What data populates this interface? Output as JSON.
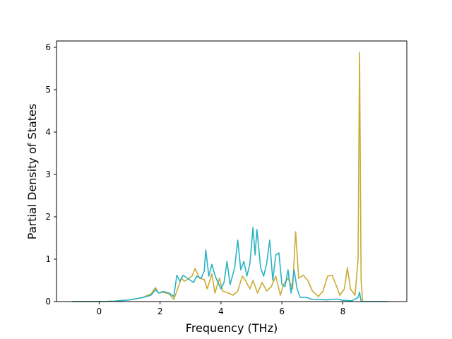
{
  "chart_data": {
    "type": "line",
    "title": "",
    "xlabel": "Frequency (THz)",
    "ylabel": "Partial Density of States",
    "xlim": [
      -1.4,
      10.1
    ],
    "ylim": [
      0,
      6.15
    ],
    "xticks": [
      0,
      2,
      4,
      6,
      8
    ],
    "yticks": [
      0,
      1,
      2,
      3,
      4,
      5,
      6
    ],
    "grid": false,
    "legend": "none",
    "series": [
      {
        "color": "#c9ab34",
        "points": [
          [
            -0.9,
            0
          ],
          [
            0,
            0
          ],
          [
            0.5,
            0.01
          ],
          [
            1.0,
            0.04
          ],
          [
            1.4,
            0.09
          ],
          [
            1.7,
            0.18
          ],
          [
            1.85,
            0.33
          ],
          [
            1.95,
            0.2
          ],
          [
            2.1,
            0.22
          ],
          [
            2.3,
            0.18
          ],
          [
            2.45,
            0.05
          ],
          [
            2.6,
            0.35
          ],
          [
            2.7,
            0.55
          ],
          [
            2.8,
            0.48
          ],
          [
            2.9,
            0.52
          ],
          [
            3.05,
            0.6
          ],
          [
            3.15,
            0.78
          ],
          [
            3.3,
            0.55
          ],
          [
            3.45,
            0.52
          ],
          [
            3.55,
            0.3
          ],
          [
            3.7,
            0.65
          ],
          [
            3.8,
            0.2
          ],
          [
            3.95,
            0.55
          ],
          [
            4.05,
            0.25
          ],
          [
            4.25,
            0.2
          ],
          [
            4.4,
            0.15
          ],
          [
            4.55,
            0.25
          ],
          [
            4.7,
            0.6
          ],
          [
            4.8,
            0.5
          ],
          [
            4.95,
            0.3
          ],
          [
            5.05,
            0.5
          ],
          [
            5.2,
            0.2
          ],
          [
            5.35,
            0.45
          ],
          [
            5.5,
            0.25
          ],
          [
            5.65,
            0.35
          ],
          [
            5.8,
            0.6
          ],
          [
            5.95,
            0.15
          ],
          [
            6.05,
            0.4
          ],
          [
            6.2,
            0.55
          ],
          [
            6.35,
            0.3
          ],
          [
            6.45,
            1.65
          ],
          [
            6.55,
            0.55
          ],
          [
            6.7,
            0.62
          ],
          [
            6.85,
            0.5
          ],
          [
            7.0,
            0.25
          ],
          [
            7.2,
            0.12
          ],
          [
            7.35,
            0.25
          ],
          [
            7.5,
            0.6
          ],
          [
            7.65,
            0.62
          ],
          [
            7.8,
            0.35
          ],
          [
            7.9,
            0.15
          ],
          [
            8.05,
            0.3
          ],
          [
            8.15,
            0.8
          ],
          [
            8.25,
            0.3
          ],
          [
            8.4,
            0.15
          ],
          [
            8.5,
            1.0
          ],
          [
            8.55,
            5.88
          ],
          [
            8.6,
            0.5
          ],
          [
            8.65,
            0
          ]
        ]
      },
      {
        "color": "#2ab3c5",
        "points": [
          [
            -0.9,
            0
          ],
          [
            0,
            0
          ],
          [
            0.5,
            0.01
          ],
          [
            1.0,
            0.04
          ],
          [
            1.4,
            0.09
          ],
          [
            1.7,
            0.15
          ],
          [
            1.85,
            0.28
          ],
          [
            1.95,
            0.2
          ],
          [
            2.1,
            0.24
          ],
          [
            2.3,
            0.2
          ],
          [
            2.45,
            0.12
          ],
          [
            2.55,
            0.62
          ],
          [
            2.65,
            0.48
          ],
          [
            2.75,
            0.62
          ],
          [
            2.9,
            0.55
          ],
          [
            3.0,
            0.5
          ],
          [
            3.1,
            0.45
          ],
          [
            3.2,
            0.6
          ],
          [
            3.35,
            0.55
          ],
          [
            3.45,
            0.72
          ],
          [
            3.5,
            1.22
          ],
          [
            3.6,
            0.6
          ],
          [
            3.7,
            0.88
          ],
          [
            3.8,
            0.62
          ],
          [
            3.9,
            0.45
          ],
          [
            4.0,
            0.3
          ],
          [
            4.1,
            0.45
          ],
          [
            4.2,
            0.95
          ],
          [
            4.3,
            0.4
          ],
          [
            4.45,
            0.8
          ],
          [
            4.55,
            1.45
          ],
          [
            4.65,
            0.75
          ],
          [
            4.75,
            0.95
          ],
          [
            4.85,
            0.6
          ],
          [
            4.95,
            0.9
          ],
          [
            5.05,
            1.75
          ],
          [
            5.12,
            1.1
          ],
          [
            5.18,
            1.7
          ],
          [
            5.3,
            0.8
          ],
          [
            5.4,
            0.6
          ],
          [
            5.5,
            0.9
          ],
          [
            5.6,
            1.45
          ],
          [
            5.7,
            0.5
          ],
          [
            5.8,
            1.1
          ],
          [
            5.9,
            1.15
          ],
          [
            6.0,
            0.4
          ],
          [
            6.1,
            0.35
          ],
          [
            6.2,
            0.75
          ],
          [
            6.3,
            0.2
          ],
          [
            6.4,
            0.75
          ],
          [
            6.5,
            0.3
          ],
          [
            6.6,
            0.1
          ],
          [
            6.8,
            0.1
          ],
          [
            7.0,
            0.05
          ],
          [
            7.5,
            0.04
          ],
          [
            7.8,
            0.06
          ],
          [
            8.0,
            0.03
          ],
          [
            8.3,
            0.02
          ],
          [
            8.5,
            0.1
          ],
          [
            8.55,
            0.22
          ],
          [
            8.6,
            0
          ],
          [
            9.0,
            0
          ],
          [
            9.5,
            0
          ]
        ]
      }
    ]
  }
}
